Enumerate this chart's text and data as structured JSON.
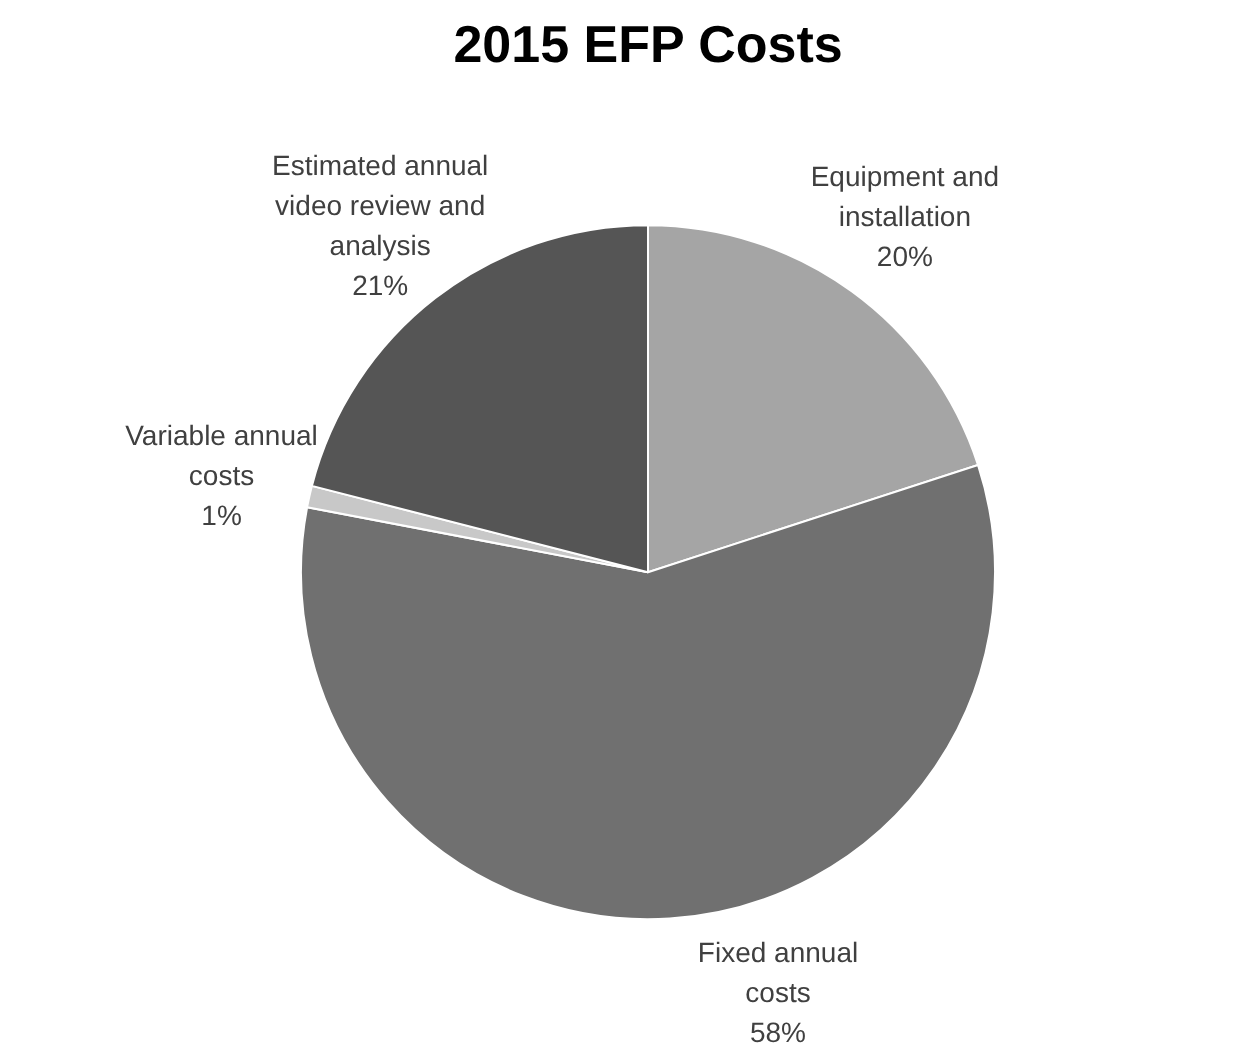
{
  "chart_data": {
    "type": "pie",
    "title": "2015 EFP Costs",
    "categories": [
      "Equipment and installation",
      "Fixed annual costs",
      "Variable annual costs",
      "Estimated annual video review and analysis"
    ],
    "values": [
      20,
      58,
      1,
      21
    ],
    "value_labels": [
      "20%",
      "58%",
      "1%",
      "21%"
    ],
    "colors": [
      "#a5a5a5",
      "#707070",
      "#c8c8c8",
      "#555555"
    ],
    "legend": false
  }
}
